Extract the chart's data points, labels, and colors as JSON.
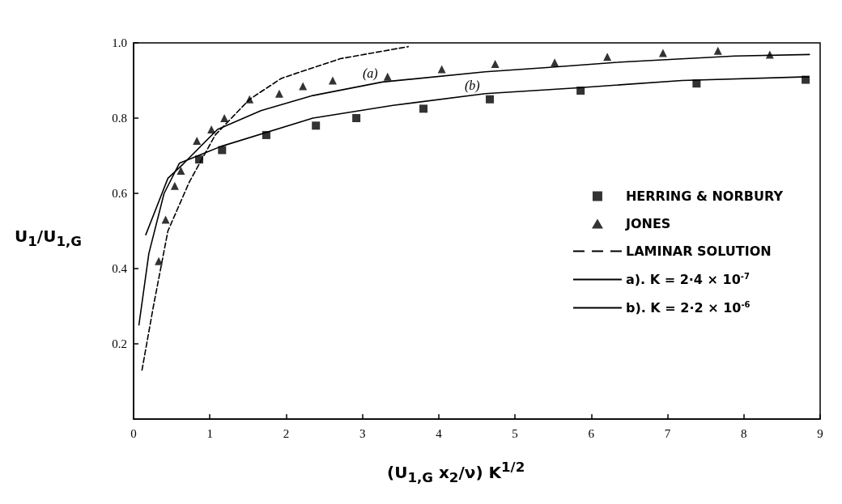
{
  "chart_data": {
    "type": "line",
    "xlabel": "(U$_{1,G}$ x$_{2}$/ν) K$^{1/2}$",
    "ylabel": "U$_{1}$/U$_{1,G}$",
    "xlim": [
      0,
      9
    ],
    "xticks": [
      0,
      1,
      2,
      3,
      4,
      5,
      6,
      7,
      8,
      9
    ],
    "ylim": [
      0,
      1
    ],
    "yticks": [
      0.2,
      0.4,
      0.6,
      0.8,
      {
        "value": 1,
        "label": "1.0"
      }
    ],
    "grid": false,
    "legend": "right",
    "annotations": [
      "(a)",
      "(b)"
    ],
    "series": [
      {
        "name": "HERRING & NORBURY",
        "type": "scatter",
        "marker": "square",
        "color": "#000000",
        "x": [
          0.86,
          1.16,
          1.74,
          2.39,
          2.92,
          3.8,
          4.67,
          5.86,
          7.38,
          8.81
        ],
        "values": [
          0.69,
          0.715,
          0.755,
          0.78,
          0.8,
          0.825,
          0.85,
          0.873,
          0.892,
          0.902
        ]
      },
      {
        "name": "JONES",
        "type": "scatter",
        "marker": "triangle",
        "color": "#000000",
        "x": [
          0.33,
          0.42,
          0.54,
          0.62,
          0.83,
          1.02,
          1.19,
          1.52,
          1.91,
          2.22,
          2.61,
          3.33,
          4.04,
          4.74,
          5.52,
          6.21,
          6.94,
          7.66,
          8.34
        ],
        "values": [
          0.42,
          0.53,
          0.62,
          0.66,
          0.74,
          0.77,
          0.8,
          0.85,
          0.865,
          0.885,
          0.9,
          0.91,
          0.93,
          0.944,
          0.948,
          0.963,
          0.973,
          0.979,
          0.969
        ]
      },
      {
        "name": "LAMINAR SOLUTION",
        "line_style": "dashed",
        "marker": "none",
        "color": "#000000",
        "x": [
          0.11,
          0.26,
          0.45,
          0.73,
          1.07,
          1.52,
          1.94,
          2.71,
          3.6
        ],
        "values": [
          0.13,
          0.3,
          0.5,
          0.63,
          0.755,
          0.85,
          0.906,
          0.958,
          0.99
        ]
      },
      {
        "name": "a). K = 2·4 × 10$^{-7}$",
        "line_style": "solid",
        "marker": "none",
        "color": "#000000",
        "x": [
          0.16,
          0.45,
          0.66,
          1.1,
          1.67,
          2.35,
          3.26,
          4.61,
          5.38,
          6.31,
          7.88,
          8.86
        ],
        "values": [
          0.49,
          0.64,
          0.68,
          0.77,
          0.82,
          0.86,
          0.896,
          0.923,
          0.934,
          0.948,
          0.965,
          0.969
        ]
      },
      {
        "name": "b). K = 2·2 × 10$^{-6}$",
        "line_style": "solid",
        "marker": "none",
        "color": "#000000",
        "x": [
          0.07,
          0.2,
          0.4,
          0.6,
          1.15,
          2.35,
          3.4,
          4.61,
          5.79,
          7.19,
          8.85
        ],
        "values": [
          0.25,
          0.44,
          0.6,
          0.68,
          0.725,
          0.8,
          0.834,
          0.865,
          0.88,
          0.9,
          0.91
        ]
      }
    ]
  }
}
